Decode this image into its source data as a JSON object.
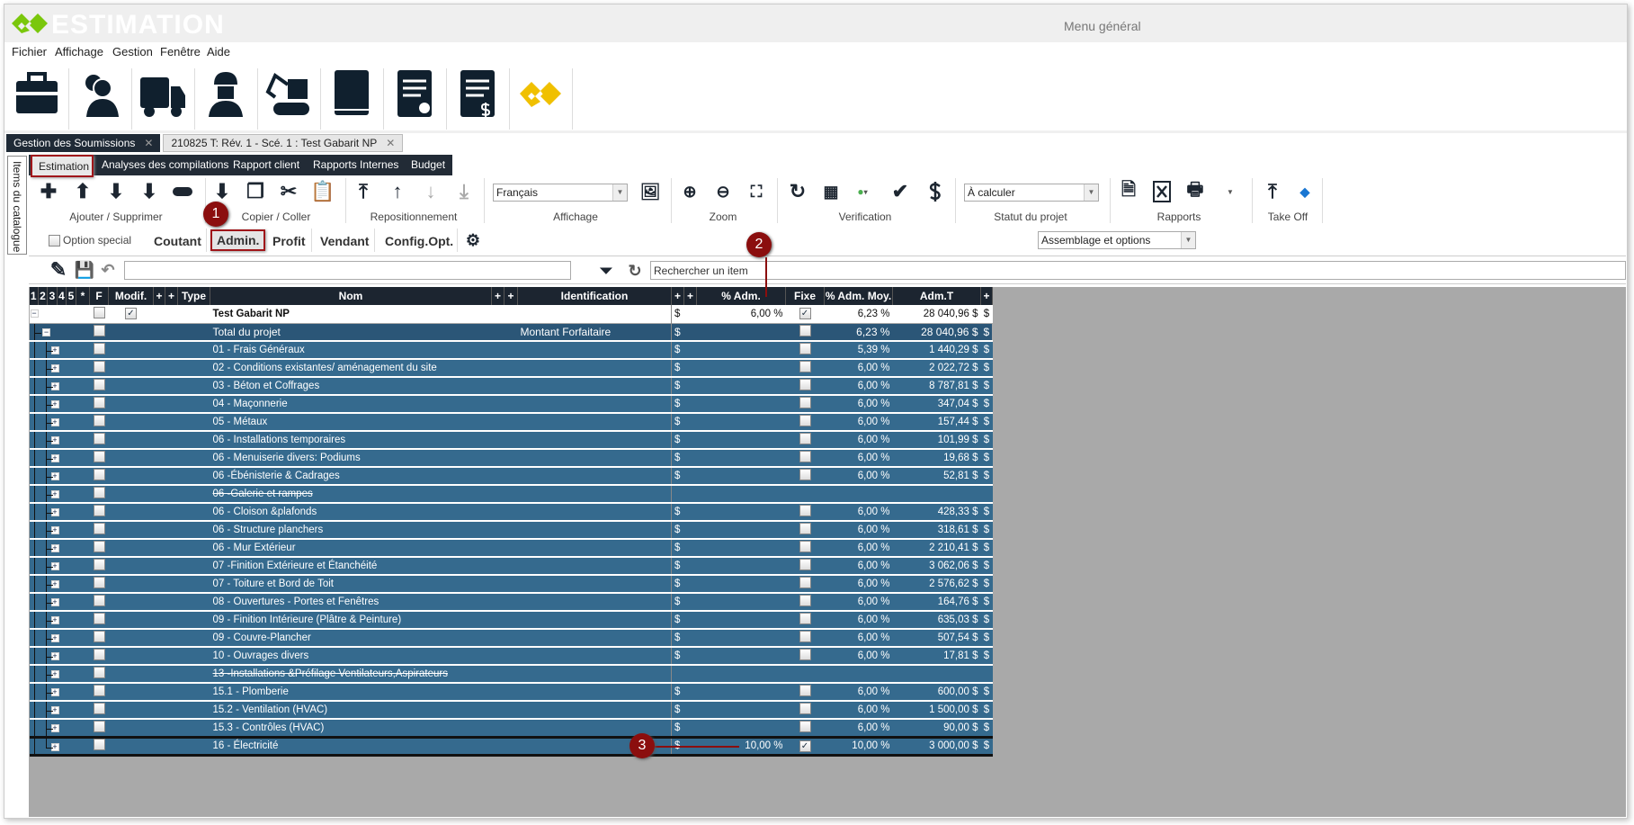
{
  "app": {
    "name": "ESTIMATION",
    "window_title": "Menu général"
  },
  "menu": [
    "Fichier",
    "Affichage",
    "Gestion",
    "Fenêtre",
    "Aide"
  ],
  "launcher_icons": [
    "briefcase-icon",
    "contacts-icon",
    "truck-icon",
    "worker-icon",
    "excavator-icon",
    "book-icon",
    "document-check-icon",
    "document-dollar-icon",
    "logo-icon"
  ],
  "doc_tabs": [
    {
      "label": "Gestion des Soumissions",
      "active": true
    },
    {
      "label": "210825 T: Rév. 1 - Scé. 1 : Test Gabarit NP",
      "active": false
    }
  ],
  "sidebar": {
    "label": "Items du catalogue"
  },
  "ribbon_tabs": [
    "Estimation",
    "Analyses des compilations",
    "Rapport client",
    "Rapports Internes",
    "Budget"
  ],
  "ribbon_groups": {
    "add_remove": "Ajouter / Supprimer",
    "copy_paste": "Copier / Coller",
    "reposition": "Repositionnement",
    "display": "Affichage",
    "zoom": "Zoom",
    "verification": "Verification",
    "status": "Statut du projet",
    "reports": "Rapports",
    "takeoff": "Take Off"
  },
  "language_select": "Français",
  "status_select": "À calculer",
  "option_special": {
    "label": "Option special",
    "checked": false
  },
  "modes": [
    "Coutant",
    "Admin.",
    "Profit",
    "Vendant",
    "Config.Opt."
  ],
  "active_mode": "Admin.",
  "view_select": "Assemblage et options",
  "search": {
    "placeholder": "Rechercher un item"
  },
  "grid": {
    "headers": [
      "1",
      "2",
      "3",
      "4",
      "5",
      "*",
      "F",
      "Modif.",
      "+",
      "+",
      "Type",
      "Nom",
      "+",
      "+",
      "Identification",
      "+",
      "+",
      "% Adm.",
      "Fixe",
      "% Adm. Moy.",
      "Adm.T",
      "+"
    ],
    "rows": [
      {
        "nom": "Test Gabarit NP",
        "ident": "",
        "cur": "$",
        "adm": "6,00 %",
        "fixe": true,
        "moy": "6,23 %",
        "total": "28 040,96 $",
        "unit": "$",
        "modif": true,
        "level": 0,
        "bold": true
      },
      {
        "nom": "Total du projet",
        "ident": "Montant Forfaitaire",
        "cur": "$",
        "adm": "",
        "fixe": false,
        "moy": "6,23 %",
        "total": "28 040,96 $",
        "unit": "$",
        "level": 1
      },
      {
        "nom": "01 - Frais Généraux",
        "cur": "$",
        "fixe": false,
        "moy": "5,39 %",
        "total": "1 440,29 $",
        "unit": "$",
        "level": 2
      },
      {
        "nom": "02 - Conditions existantes/ aménagement du site",
        "cur": "$",
        "fixe": false,
        "moy": "6,00 %",
        "total": "2 022,72 $",
        "unit": "$",
        "level": 2
      },
      {
        "nom": "03 -  Béton et Coffrages",
        "cur": "$",
        "fixe": false,
        "moy": "6,00 %",
        "total": "8 787,81 $",
        "unit": "$",
        "level": 2
      },
      {
        "nom": "04 - Maçonnerie",
        "cur": "$",
        "fixe": false,
        "moy": "6,00 %",
        "total": "347,04 $",
        "unit": "$",
        "level": 2
      },
      {
        "nom": "05 - Métaux",
        "cur": "$",
        "fixe": false,
        "moy": "6,00 %",
        "total": "157,44 $",
        "unit": "$",
        "level": 2
      },
      {
        "nom": "06 - Installations temporaires",
        "cur": "$",
        "fixe": false,
        "moy": "6,00 %",
        "total": "101,99 $",
        "unit": "$",
        "level": 2
      },
      {
        "nom": "06 - Menuiserie divers: Podiums",
        "cur": "$",
        "fixe": false,
        "moy": "6,00 %",
        "total": "19,68 $",
        "unit": "$",
        "level": 2
      },
      {
        "nom": "06  -Ébénisterie & Cadrages",
        "cur": "$",
        "fixe": false,
        "moy": "6,00 %",
        "total": "52,81 $",
        "unit": "$",
        "level": 2
      },
      {
        "nom": "06 -Galerie et rampes",
        "strike": true,
        "level": 2
      },
      {
        "nom": "06 - Cloison &plafonds",
        "cur": "$",
        "fixe": false,
        "moy": "6,00 %",
        "total": "428,33 $",
        "unit": "$",
        "level": 2
      },
      {
        "nom": "06 - Structure planchers",
        "cur": "$",
        "fixe": false,
        "moy": "6,00 %",
        "total": "318,61 $",
        "unit": "$",
        "level": 2
      },
      {
        "nom": "06 - Mur Extérieur",
        "cur": "$",
        "fixe": false,
        "moy": "6,00 %",
        "total": "2 210,41 $",
        "unit": "$",
        "level": 2
      },
      {
        "nom": "07 -Finition Extérieure et Étanchéité",
        "cur": "$",
        "fixe": false,
        "moy": "6,00 %",
        "total": "3 062,06 $",
        "unit": "$",
        "level": 2
      },
      {
        "nom": "07 - Toiture et Bord de Toit",
        "cur": "$",
        "fixe": false,
        "moy": "6,00 %",
        "total": "2 576,62 $",
        "unit": "$",
        "level": 2
      },
      {
        "nom": "08 - Ouvertures - Portes et Fenêtres",
        "cur": "$",
        "fixe": false,
        "moy": "6,00 %",
        "total": "164,76 $",
        "unit": "$",
        "level": 2
      },
      {
        "nom": "09 - Finition Intérieure (Plâtre & Peinture)",
        "cur": "$",
        "fixe": false,
        "moy": "6,00 %",
        "total": "635,03 $",
        "unit": "$",
        "level": 2
      },
      {
        "nom": "09 - Couvre-Plancher",
        "cur": "$",
        "fixe": false,
        "moy": "6,00 %",
        "total": "507,54 $",
        "unit": "$",
        "level": 2
      },
      {
        "nom": "10 - Ouvrages divers",
        "cur": "$",
        "fixe": false,
        "moy": "6,00 %",
        "total": "17,81 $",
        "unit": "$",
        "level": 2
      },
      {
        "nom": "13 -Installations  &Préfilage Ventilateurs,Aspirateurs",
        "strike": true,
        "level": 2
      },
      {
        "nom": "15.1 - Plomberie",
        "cur": "$",
        "fixe": false,
        "moy": "6,00 %",
        "total": "600,00 $",
        "unit": "$",
        "level": 2
      },
      {
        "nom": "15.2 - Ventilation (HVAC)",
        "cur": "$",
        "fixe": false,
        "moy": "6,00 %",
        "total": "1 500,00 $",
        "unit": "$",
        "level": 2
      },
      {
        "nom": "15.3 - Contrôles (HVAC)",
        "cur": "$",
        "fixe": false,
        "moy": "6,00 %",
        "total": "90,00 $",
        "unit": "$",
        "level": 2
      },
      {
        "nom": "16 - Électricité",
        "cur": "$",
        "adm": "10,00 %",
        "fixe": true,
        "moy": "10,00 %",
        "total": "3 000,00 $",
        "unit": "$",
        "level": 2,
        "last": true
      }
    ]
  },
  "annotations": [
    "1",
    "2",
    "3"
  ],
  "colors": {
    "header": "#1c2530",
    "row": "#356a8e",
    "selected_row": "#2b5677",
    "marker": "#8b0e0e",
    "logo_green": "#7ac70c",
    "logo_yellow": "#f0c000"
  }
}
